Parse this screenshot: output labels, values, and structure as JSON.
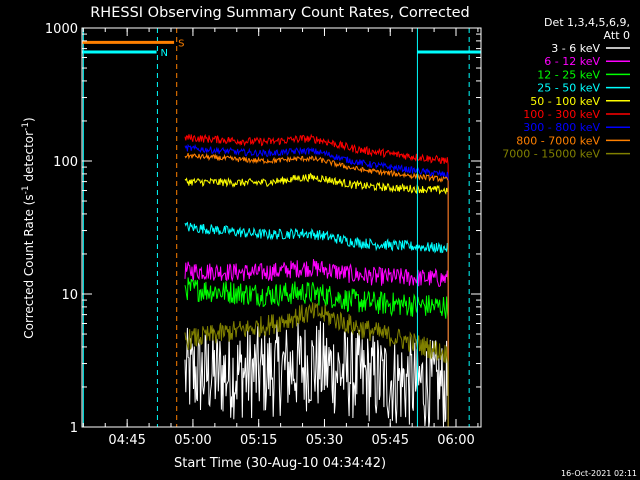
{
  "chart_data": {
    "type": "line",
    "title": "RHESSI Observing Summary Count Rates, Corrected",
    "xlabel": "Start Time (30-Aug-10 04:34:42)",
    "ylabel_main": "Corrected Count Rate (s",
    "ylabel_sup1": "-1",
    "ylabel_mid": " detector",
    "ylabel_sup2": "-1",
    "ylabel_end": ")",
    "y_scale": "log",
    "ylim": [
      1,
      1000
    ],
    "x_unit": "minutes after 04:34:42",
    "xlim": [
      0,
      91
    ],
    "x_ticks": [
      {
        "label": "04:45",
        "value": 10.3
      },
      {
        "label": "05:00",
        "value": 25.3
      },
      {
        "label": "05:15",
        "value": 40.3
      },
      {
        "label": "05:30",
        "value": 55.3
      },
      {
        "label": "05:45",
        "value": 70.3
      },
      {
        "label": "06:00",
        "value": 85.3
      }
    ],
    "y_ticks": [
      {
        "label": "1",
        "value": 1
      },
      {
        "label": "10",
        "value": 10
      },
      {
        "label": "100",
        "value": 100
      },
      {
        "label": "1000",
        "value": 1000
      }
    ],
    "legend_header": [
      "Det 1,3,4,5,6,9,",
      "Att 0"
    ],
    "legend_position": "right",
    "series": [
      {
        "name": "3 - 6 keV",
        "color": "#ffffff",
        "x_range": [
          23.5,
          83.5
        ],
        "start": 2.5,
        "mid": 2.6,
        "end": 2.0,
        "noise": 0.35
      },
      {
        "name": "6 - 12 keV",
        "color": "#ff00ff",
        "x_range": [
          23.5,
          83.5
        ],
        "start": 15,
        "mid": 14,
        "end": 13,
        "noise": 0.07
      },
      {
        "name": "12 - 25 keV",
        "color": "#00ff00",
        "x_range": [
          23.5,
          83.5
        ],
        "start": 11,
        "mid": 9,
        "end": 8,
        "noise": 0.09
      },
      {
        "name": "25 - 50 keV",
        "color": "#00ffff",
        "x_range": [
          23.5,
          83.5
        ],
        "start": 32,
        "mid": 25,
        "end": 22,
        "noise": 0.04
      },
      {
        "name": "50 - 100 keV",
        "color": "#ffff00",
        "x_range": [
          23.5,
          83.5
        ],
        "start": 70,
        "mid": 67,
        "end": 60,
        "noise": 0.03
      },
      {
        "name": "100 - 300 keV",
        "color": "#ff0000",
        "x_range": [
          23.5,
          83.5
        ],
        "start": 150,
        "mid": 130,
        "end": 100,
        "noise": 0.03
      },
      {
        "name": "300 - 800 keV",
        "color": "#0000ff",
        "x_range": [
          23.5,
          83.5
        ],
        "start": 125,
        "mid": 105,
        "end": 78,
        "noise": 0.025
      },
      {
        "name": "800 - 7000 keV",
        "color": "#ff8000",
        "x_range": [
          23.5,
          83.5
        ],
        "start": 110,
        "mid": 92,
        "end": 72,
        "noise": 0.02
      },
      {
        "name": "7000 - 15000 keV",
        "color": "#808000",
        "x_range": [
          23.5,
          83.5
        ],
        "start": 4.5,
        "mid": 6.5,
        "end": 3.5,
        "noise": 0.08
      }
    ],
    "flags": [
      {
        "label": "S",
        "color": "#ff8000",
        "x_range": [
          0,
          21
        ],
        "y": 780
      },
      {
        "label": "N",
        "color": "#00ffff",
        "x_range": [
          0,
          17
        ],
        "y": 660
      },
      {
        "label": "",
        "color": "#00ffff",
        "x_range": [
          76.5,
          91
        ],
        "y": 660
      }
    ],
    "vlines": [
      {
        "x": 17.2,
        "color": "#00ffff",
        "style": "dashed"
      },
      {
        "x": 21.6,
        "color": "#ff8000",
        "style": "dashed"
      },
      {
        "x": 76.5,
        "color": "#00ffff",
        "style": "solid"
      },
      {
        "x": 88.3,
        "color": "#00ffff",
        "style": "dashed"
      },
      {
        "x": 0.3,
        "color": "#00ffff",
        "style": "solid"
      }
    ],
    "footer_timestamp": "16-Oct-2021 02:11"
  }
}
